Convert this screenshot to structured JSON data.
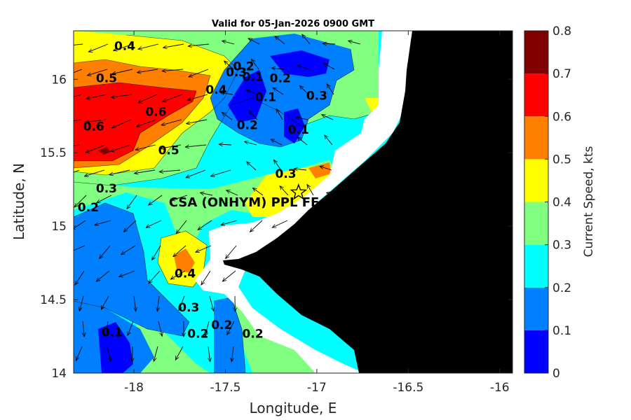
{
  "chart_data": {
    "type": "heatmap",
    "title": "Valid for 05-Jan-2026 0900 GMT",
    "xlabel": "Longitude, E",
    "ylabel": "Latitude, N",
    "xlim": [
      -18.33,
      -15.93
    ],
    "ylim": [
      14.0,
      16.33
    ],
    "xticks": [
      {
        "value": -18,
        "label": "-18"
      },
      {
        "value": -17.5,
        "label": "-17.5"
      },
      {
        "value": -17,
        "label": "-17"
      },
      {
        "value": -16.5,
        "label": "-16.5"
      },
      {
        "value": -16,
        "label": "-16"
      }
    ],
    "yticks": [
      {
        "value": 14,
        "label": "14"
      },
      {
        "value": 14.5,
        "label": "14.5"
      },
      {
        "value": 15,
        "label": "15"
      },
      {
        "value": 15.5,
        "label": "15.5"
      },
      {
        "value": 16,
        "label": "16"
      }
    ],
    "colorbar": {
      "label": "Current Speed,  kts",
      "range": [
        0,
        0.8
      ],
      "levels": [
        0,
        0.1,
        0.2,
        0.3,
        0.4,
        0.5,
        0.6,
        0.7,
        0.8
      ],
      "tick_labels": [
        "0",
        "0.1",
        "0.2",
        "0.3",
        "0.4",
        "0.5",
        "0.6",
        "0.7",
        "0.8"
      ],
      "colors": [
        "#0000ff",
        "#0080ff",
        "#00ffff",
        "#80ff80",
        "#ffff00",
        "#ff8000",
        "#ff0000",
        "#800000"
      ]
    },
    "contour_labels": [
      {
        "text": "0.4",
        "lon": -18.05,
        "lat": 16.2
      },
      {
        "text": "0.5",
        "lon": -18.15,
        "lat": 15.98
      },
      {
        "text": "0.6",
        "lon": -18.22,
        "lat": 15.65
      },
      {
        "text": "0.6",
        "lon": -17.88,
        "lat": 15.75
      },
      {
        "text": "0.5",
        "lon": -17.81,
        "lat": 15.49
      },
      {
        "text": "0.4",
        "lon": -17.55,
        "lat": 15.9
      },
      {
        "text": "0.3",
        "lon": -17.44,
        "lat": 16.02
      },
      {
        "text": "0.2",
        "lon": -17.4,
        "lat": 16.06
      },
      {
        "text": "0.1",
        "lon": -17.35,
        "lat": 15.99
      },
      {
        "text": "0.1",
        "lon": -17.28,
        "lat": 15.85
      },
      {
        "text": "0.2",
        "lon": -17.2,
        "lat": 15.98
      },
      {
        "text": "0.3",
        "lon": -17.0,
        "lat": 15.86
      },
      {
        "text": "0.1",
        "lon": -17.1,
        "lat": 15.63
      },
      {
        "text": "0.2",
        "lon": -17.38,
        "lat": 15.66
      },
      {
        "text": "0.3",
        "lon": -17.17,
        "lat": 15.33
      },
      {
        "text": "0.3",
        "lon": -18.15,
        "lat": 15.23
      },
      {
        "text": "0.2",
        "lon": -18.25,
        "lat": 15.1
      },
      {
        "text": "0.4",
        "lon": -17.72,
        "lat": 14.65
      },
      {
        "text": "0.3",
        "lon": -17.7,
        "lat": 14.42
      },
      {
        "text": "0.2",
        "lon": -17.65,
        "lat": 14.24
      },
      {
        "text": "0.2",
        "lon": -17.52,
        "lat": 14.3
      },
      {
        "text": "0.2",
        "lon": -17.35,
        "lat": 14.24
      },
      {
        "text": "0.1",
        "lon": -18.12,
        "lat": 14.25
      }
    ],
    "station": {
      "name": "CSA (ONHYM) PPL FE",
      "lon": -17.1,
      "lat": 15.23
    }
  }
}
